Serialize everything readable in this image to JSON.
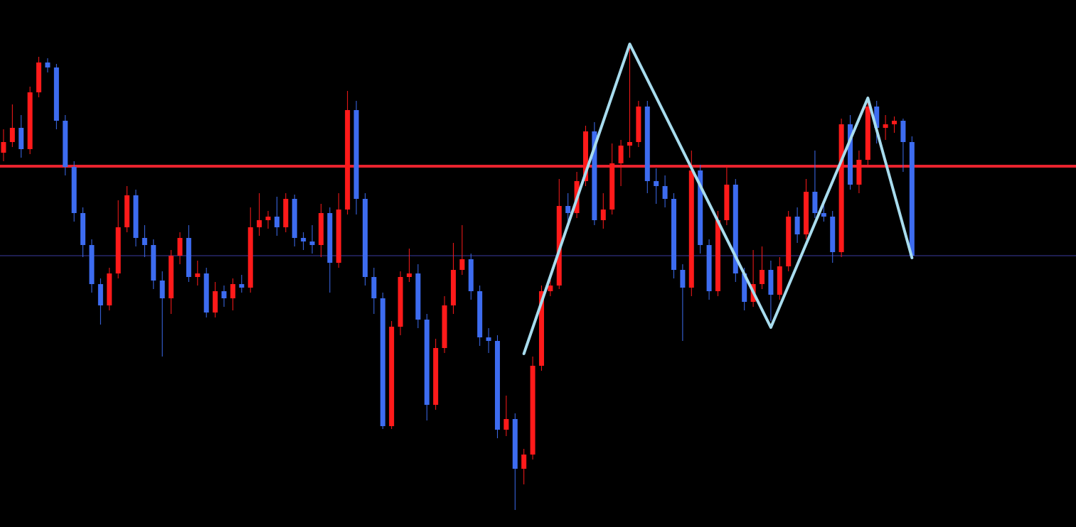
{
  "chart_data": {
    "type": "candlestick",
    "background": "#000000",
    "up_color": "#ff1a1a",
    "down_color": "#3d6cf0",
    "xlim": [
      -0.4,
      121.6
    ],
    "ylim": [
      0,
      742
    ],
    "open": [
      527,
      542,
      562,
      532,
      612,
      654,
      647,
      572,
      507,
      442,
      397,
      342,
      312,
      357,
      422,
      467,
      407,
      397,
      347,
      322,
      382,
      407,
      352,
      357,
      302,
      332,
      322,
      342,
      337,
      422,
      432,
      437,
      422,
      462,
      407,
      402,
      397,
      442,
      372,
      447,
      587,
      462,
      352,
      322,
      142,
      282,
      352,
      357,
      292,
      172,
      252,
      312,
      362,
      377,
      332,
      267,
      262,
      137,
      152,
      82,
      102,
      227,
      332,
      340,
      452,
      442,
      487,
      557,
      432,
      447,
      512,
      537,
      542,
      592,
      487,
      480,
      462,
      362,
      337,
      502,
      397,
      332,
      432,
      482,
      357,
      317,
      342,
      362,
      327,
      367,
      437,
      412,
      472,
      442,
      437,
      387,
      567,
      482,
      517,
      592,
      562,
      567,
      572,
      542
    ],
    "high": [
      560,
      595,
      580,
      620,
      662,
      660,
      652,
      580,
      515,
      450,
      405,
      350,
      365,
      460,
      480,
      475,
      425,
      405,
      360,
      390,
      415,
      425,
      375,
      365,
      345,
      340,
      350,
      355,
      450,
      470,
      445,
      465,
      470,
      468,
      415,
      425,
      455,
      450,
      470,
      614,
      600,
      470,
      365,
      330,
      290,
      360,
      392,
      370,
      300,
      265,
      325,
      400,
      425,
      385,
      340,
      280,
      270,
      185,
      160,
      110,
      240,
      340,
      350,
      490,
      470,
      500,
      565,
      570,
      470,
      540,
      545,
      680,
      600,
      600,
      505,
      495,
      470,
      370,
      530,
      510,
      405,
      445,
      510,
      490,
      365,
      390,
      395,
      375,
      380,
      445,
      450,
      490,
      530,
      460,
      445,
      575,
      580,
      530,
      604,
      600,
      580,
      578,
      575,
      550
    ],
    "low": [
      515,
      535,
      520,
      525,
      605,
      640,
      560,
      495,
      430,
      380,
      330,
      285,
      305,
      350,
      415,
      395,
      380,
      335,
      240,
      300,
      370,
      345,
      340,
      295,
      295,
      310,
      305,
      330,
      330,
      410,
      420,
      410,
      415,
      395,
      390,
      385,
      380,
      330,
      365,
      440,
      440,
      340,
      300,
      138,
      138,
      270,
      345,
      280,
      150,
      165,
      245,
      300,
      355,
      320,
      255,
      245,
      125,
      128,
      24,
      60,
      95,
      220,
      325,
      335,
      420,
      435,
      480,
      425,
      420,
      440,
      480,
      520,
      535,
      470,
      455,
      450,
      350,
      262,
      325,
      385,
      320,
      325,
      425,
      345,
      305,
      310,
      335,
      290,
      320,
      360,
      400,
      405,
      435,
      430,
      372,
      380,
      475,
      470,
      510,
      540,
      545,
      555,
      500,
      378
    ],
    "close": [
      542,
      562,
      532,
      612,
      654,
      647,
      572,
      507,
      442,
      397,
      342,
      312,
      357,
      422,
      467,
      407,
      397,
      347,
      322,
      382,
      407,
      352,
      357,
      302,
      332,
      322,
      342,
      337,
      422,
      432,
      437,
      422,
      462,
      407,
      402,
      397,
      442,
      372,
      447,
      587,
      462,
      352,
      322,
      142,
      282,
      352,
      357,
      292,
      172,
      252,
      312,
      362,
      377,
      332,
      267,
      262,
      137,
      152,
      82,
      102,
      227,
      332,
      340,
      452,
      442,
      487,
      557,
      432,
      447,
      512,
      537,
      542,
      592,
      487,
      480,
      462,
      362,
      337,
      502,
      397,
      332,
      432,
      482,
      357,
      317,
      342,
      362,
      327,
      367,
      437,
      412,
      472,
      442,
      437,
      387,
      567,
      482,
      517,
      592,
      562,
      567,
      572,
      542,
      382
    ],
    "levels": [
      {
        "value": 508,
        "color": "#e8232e"
      },
      {
        "value": 382,
        "color": "#3a3aa0"
      }
    ],
    "zigzag": {
      "color": "#a8dcee",
      "x": [
        59,
        71,
        87,
        98,
        103
      ],
      "values": [
        244,
        680,
        281,
        604,
        379
      ]
    }
  }
}
